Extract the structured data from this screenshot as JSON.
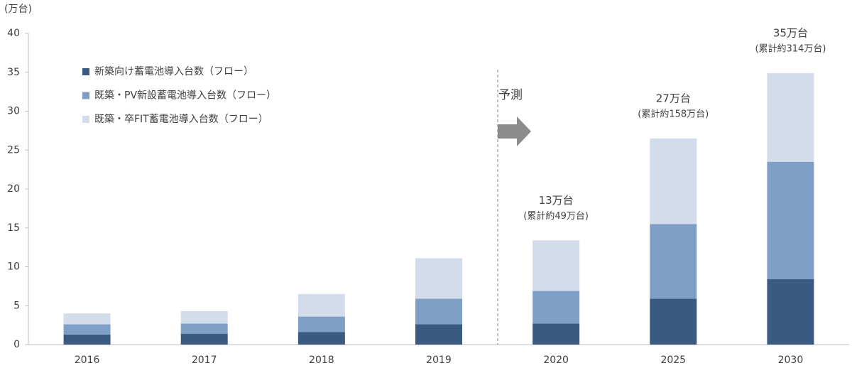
{
  "chart_data": {
    "type": "stacked_bar",
    "y_unit_label": "(万台)",
    "categories": [
      "2016",
      "2017",
      "2018",
      "2019",
      "2020",
      "2025",
      "2030"
    ],
    "series": [
      {
        "name": "新築向け蓄電池導入台数（フロー）",
        "color": "#3b5a82",
        "values": [
          1.3,
          1.4,
          1.6,
          2.6,
          2.7,
          5.9,
          8.4
        ]
      },
      {
        "name": "既築・PV新設蓄電池導入台数（フロー）",
        "color": "#7f9fc6",
        "values": [
          1.3,
          1.3,
          2.0,
          3.3,
          4.2,
          9.6,
          15.1
        ]
      },
      {
        "name": "既築・卒FIT蓄電池導入台数（フロー）",
        "color": "#d3dcea",
        "values": [
          1.4,
          1.6,
          2.9,
          5.2,
          6.5,
          11.0,
          11.4
        ]
      }
    ],
    "ylim": [
      0,
      40
    ],
    "yticks": [
      0,
      5,
      10,
      15,
      20,
      25,
      30,
      35,
      40
    ],
    "forecast_label": "予測",
    "annotations": [
      {
        "text": "13万台",
        "subtext": "(累計約49万台)"
      },
      {
        "text": "27万台",
        "subtext": "(累計約158万台)"
      },
      {
        "text": "35万台",
        "subtext": "(累計約314万台)"
      }
    ]
  }
}
